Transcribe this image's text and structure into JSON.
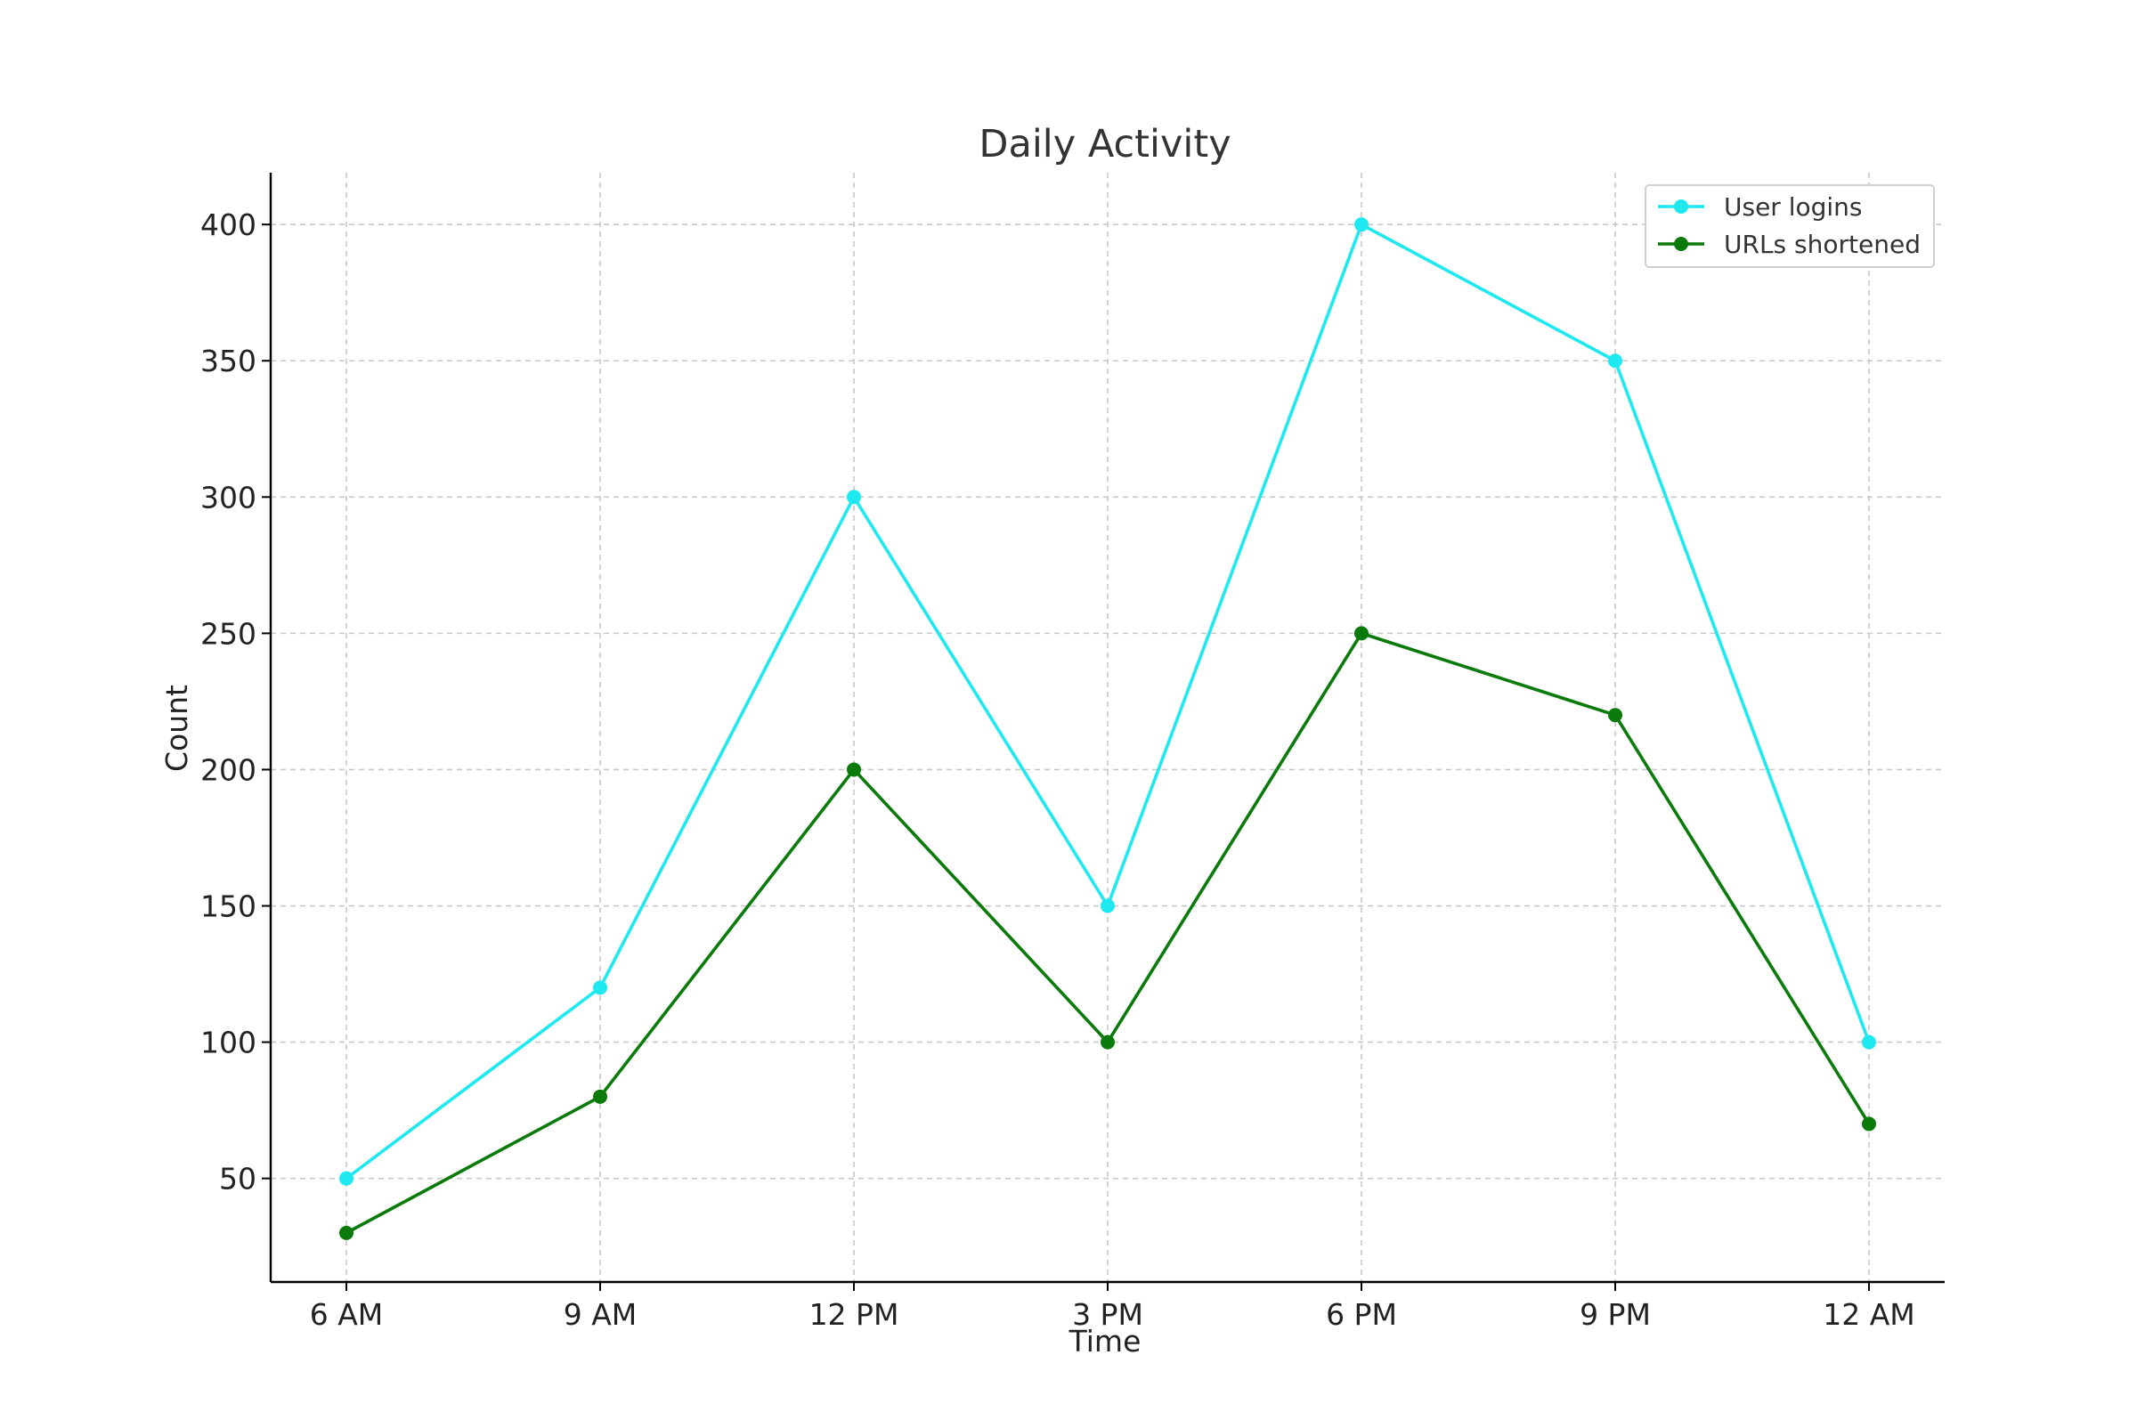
{
  "chart_data": {
    "type": "line",
    "title": "Daily Activity",
    "xlabel": "Time",
    "ylabel": "Count",
    "categories": [
      "6 AM",
      "9 AM",
      "12 PM",
      "3 PM",
      "6 PM",
      "9 PM",
      "12 AM"
    ],
    "series": [
      {
        "name": "User logins",
        "color": "#1ee8f0",
        "values": [
          50,
          120,
          300,
          150,
          400,
          350,
          100
        ]
      },
      {
        "name": "URLs shortened",
        "color": "#0a7a0a",
        "values": [
          30,
          80,
          200,
          100,
          250,
          220,
          70
        ]
      }
    ],
    "yticks": [
      50,
      100,
      150,
      200,
      250,
      300,
      350,
      400
    ],
    "ylim": [
      12,
      419
    ],
    "grid": true,
    "legend_position": "top-right"
  }
}
